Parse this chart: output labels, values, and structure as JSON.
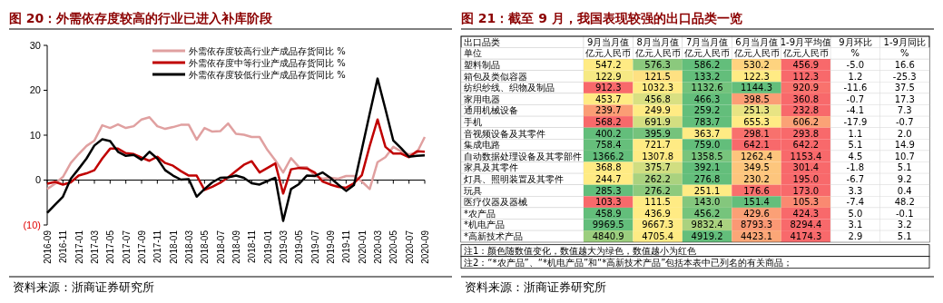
{
  "chart_data": [
    {
      "type": "line",
      "title": "图 20：外需依存度较高的行业已进入补库阶段",
      "categories": [
        "2016-09",
        null,
        "2016-11",
        null,
        "2017-01",
        null,
        "2017-03",
        null,
        "2017-05",
        null,
        "2017-07",
        null,
        "2017-09",
        null,
        "2017-11",
        null,
        "2018-01",
        null,
        "2018-03",
        null,
        "2018-05",
        null,
        "2018-07",
        null,
        "2018-09",
        null,
        "2018-11",
        null,
        "2019-01",
        null,
        "2019-03",
        null,
        "2019-05",
        null,
        "2019-07",
        null,
        "2019-09",
        null,
        "2019-11",
        null,
        "2020-01",
        null,
        "2020-03",
        null,
        "2020-05",
        null,
        "2020-07",
        null,
        "2020-09"
      ],
      "series": [
        {
          "name": "外需依存度较高行业产成品存货同比 %",
          "color": "#e0a0a0",
          "values": [
            -2.0,
            -0.8,
            0.7,
            3.8,
            5.8,
            7.6,
            8.8,
            12.2,
            11.6,
            12.4,
            11.6,
            12.0,
            13.5,
            14.0,
            12.0,
            11.4,
            11.8,
            12.3,
            12.3,
            9.0,
            11.6,
            10.8,
            10.9,
            12.6,
            10.3,
            10.1,
            9.6,
            9.6,
            6.7,
            4.4,
            1.7,
            4.9,
            2.9,
            2.9,
            1.0,
            0.3,
            0.5,
            0.3,
            0.9,
            0.9,
            -0.3,
            -2.0,
            4.0,
            5.1,
            7.4,
            6.4,
            5.7,
            6.1,
            9.6
          ]
        },
        {
          "name": "外需依存度中等行业产成品存货同比 %",
          "color": "#c00000",
          "values": [
            -0.8,
            -0.4,
            -1.0,
            -0.5,
            1.0,
            1.5,
            2.2,
            4.8,
            7.0,
            7.0,
            6.0,
            5.8,
            5.0,
            4.3,
            5.2,
            3.8,
            3.2,
            2.0,
            1.0,
            1.0,
            -2.2,
            -1.5,
            -0.6,
            0.6,
            2.0,
            3.4,
            4.2,
            1.7,
            2.7,
            3.7,
            -3.0,
            2.4,
            2.7,
            2.6,
            1.7,
            -0.3,
            -1.0,
            -1.5,
            -1.7,
            -0.7,
            1.1,
            7.6,
            13.5,
            7.4,
            5.9,
            5.9,
            5.1,
            6.4,
            6.3
          ]
        },
        {
          "name": "外需依存度较低行业产成品存货同比 %",
          "color": "#000000",
          "values": [
            -7.3,
            -5.5,
            -3.7,
            0.3,
            2.5,
            4.8,
            7.7,
            9.1,
            8.7,
            6.3,
            5.4,
            5.6,
            4.5,
            6.3,
            4.8,
            2.2,
            1.0,
            0.1,
            0.2,
            -3.7,
            -2.0,
            -0.5,
            0.5,
            0.6,
            1.0,
            0.5,
            -0.7,
            -1.0,
            -0.2,
            0.5,
            -9.1,
            -2.0,
            -0.9,
            1.0,
            0.9,
            1.7,
            0.5,
            -1.0,
            -2.4,
            -1.1,
            6.8,
            14.8,
            22.6,
            15.8,
            8.8,
            7.1,
            5.2,
            5.4,
            5.5
          ]
        }
      ],
      "ylim": [
        -10,
        30
      ],
      "yticks": [
        {
          "value": -10,
          "label": "(10)"
        },
        0,
        10,
        20,
        30
      ],
      "legend": "top right",
      "annotations": [
        "资料来源：浙商证券研究所"
      ]
    },
    {
      "type": "heatmap",
      "title": "图 21：截至 9 月，我国表现较强的出口品类一览",
      "ylabel": "出口品类",
      "categories": [
        "9月当月值",
        "8月当月值",
        "7月当月值",
        "6月当月值",
        "1-9月平均值",
        "9月环比",
        "1-9月同比"
      ],
      "y_categories": [
        "单位",
        "塑料制品",
        "箱包及类似容器",
        "纺织纱线、织物及制品",
        "家用电器",
        "通用机械设备",
        "手机",
        "音视频设备及其零件",
        "集成电路",
        "自动数据处理设备及其零部件",
        "家具及其零件",
        "灯具、照明装置及其零件",
        "玩具",
        "医疗仪器及器械",
        "*农产品",
        "*机电产品",
        "*高新技术产品"
      ],
      "cells": [
        [
          null,
          null,
          null,
          null,
          null,
          null,
          null
        ],
        [
          547.2,
          576.3,
          586.2,
          530.2,
          456.9,
          null,
          null
        ],
        [
          122.9,
          121.5,
          133.2,
          122.3,
          112.3,
          null,
          null
        ],
        [
          912.3,
          1032.3,
          1132.6,
          1144.3,
          920.9,
          null,
          null
        ],
        [
          453.7,
          456.8,
          466.3,
          398.5,
          360.8,
          null,
          null
        ],
        [
          239.7,
          249.9,
          259.2,
          251.3,
          232.8,
          null,
          null
        ],
        [
          568.2,
          691.9,
          783.7,
          655.3,
          606.2,
          null,
          null
        ],
        [
          400.2,
          395.9,
          363.7,
          298.1,
          293.8,
          null,
          null
        ],
        [
          758.4,
          721.7,
          759.0,
          642.1,
          642.2,
          null,
          null
        ],
        [
          1366.2,
          1307.8,
          1358.5,
          1262.4,
          1153.4,
          null,
          null
        ],
        [
          368.8,
          375.7,
          392.1,
          349.5,
          301.4,
          null,
          null
        ],
        [
          244.7,
          262.2,
          276.8,
          230.2,
          195.0,
          null,
          null
        ],
        [
          285.3,
          276.2,
          251.1,
          176.6,
          173.0,
          null,
          null
        ],
        [
          103.3,
          111.5,
          143.0,
          151.4,
          105.3,
          null,
          null
        ],
        [
          458.9,
          436.9,
          456.2,
          429.6,
          424.3,
          null,
          null
        ],
        [
          9969.5,
          9667.3,
          9832.4,
          8793.3,
          8294.4,
          null,
          null
        ],
        [
          4840.9,
          4705.4,
          4919.2,
          4423.1,
          4174.3,
          null,
          null
        ]
      ],
      "cell_labels": [
        [
          "亿元人民币",
          "亿元人民币",
          "亿元人民币",
          "亿元人民币",
          "亿元人民币",
          "%",
          "%"
        ],
        [
          "547.2",
          "576.3",
          "586.2",
          "530.2",
          "456.9",
          "-5.0",
          "16.6"
        ],
        [
          "122.9",
          "121.5",
          "133.2",
          "122.3",
          "112.3",
          "1.2",
          "-25.3"
        ],
        [
          "912.3",
          "1032.3",
          "1132.6",
          "1144.3",
          "920.9",
          "-11.6",
          "37.5"
        ],
        [
          "453.7",
          "456.8",
          "466.3",
          "398.5",
          "360.8",
          "-0.7",
          "17.3"
        ],
        [
          "239.7",
          "249.9",
          "259.2",
          "251.3",
          "232.8",
          "-4.1",
          "7.3"
        ],
        [
          "568.2",
          "691.9",
          "783.7",
          "655.3",
          "606.2",
          "-17.9",
          "-0.7"
        ],
        [
          "400.2",
          "395.9",
          "363.7",
          "298.1",
          "293.8",
          "1.1",
          "2.0"
        ],
        [
          "758.4",
          "721.7",
          "759.0",
          "642.1",
          "642.2",
          "5.1",
          "14.9"
        ],
        [
          "1366.2",
          "1307.8",
          "1358.5",
          "1262.4",
          "1153.4",
          "4.5",
          "10.7"
        ],
        [
          "368.8",
          "375.7",
          "392.1",
          "349.5",
          "301.4",
          "-1.8",
          "5.1"
        ],
        [
          "244.7",
          "262.2",
          "276.8",
          "230.2",
          "195.0",
          "-6.7",
          "9.2"
        ],
        [
          "285.3",
          "276.2",
          "251.1",
          "176.6",
          "173.0",
          "3.3",
          "0.4"
        ],
        [
          "103.3",
          "111.5",
          "143.0",
          "151.4",
          "105.3",
          "-7.4",
          "48.2"
        ],
        [
          "458.9",
          "436.9",
          "456.2",
          "429.6",
          "424.3",
          "5.0",
          "-0.1"
        ],
        [
          "9969.5",
          "9667.3",
          "9832.4",
          "8793.3",
          "8294.4",
          "3.1",
          "3.2"
        ],
        [
          "4840.9",
          "4705.4",
          "4919.2",
          "4423.1",
          "4174.3",
          "2.9",
          "5.1"
        ]
      ],
      "annotations": [
        "注1：颜色随数值变化，数值越大为绿色，数值越小为红色",
        "注2：“*农产品”、“*机电产品”和“*高新技术产品”包括本表中已列名的有关商品；",
        "资料来源：浙商证券研究所"
      ]
    }
  ]
}
